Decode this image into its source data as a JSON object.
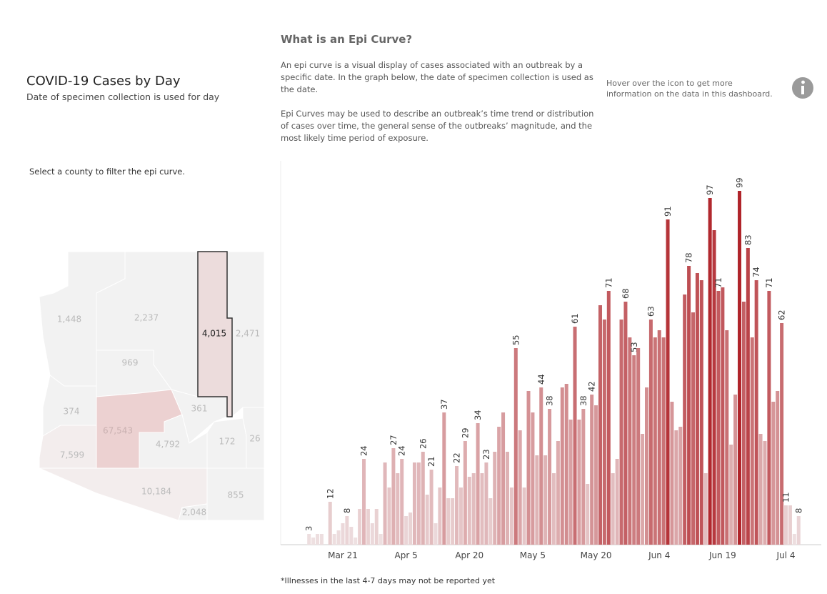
{
  "header": {
    "title": "COVID-19 Cases by Day",
    "subtitle": "Date of specimen collection is used for day"
  },
  "map": {
    "instruction": "Select a county to filter the epi curve.",
    "counties": [
      "1,448",
      "2,237",
      "969",
      "4,015",
      "2,471",
      "374",
      "67,543",
      "361",
      "7,599",
      "4,792",
      "172",
      "26",
      "10,184",
      "2,048",
      "855"
    ]
  },
  "about": {
    "heading": "What is an Epi Curve?",
    "paragraphs": [
      "An epi curve is a visual display of cases associated with an outbreak by a specific date. In the graph below, the date of specimen collection is used as the date.",
      "Epi Curves may be used to describe an outbreak’s time trend or distribution of cases over time, the general sense of the outbreaks’ magnitude, and the most likely time period of exposure."
    ]
  },
  "info": {
    "text": "Hover over the icon to get more information on the data in this dashboard."
  },
  "footnote": "*Illnesses in the last 4-7 days may not be reported yet",
  "chart_data": {
    "type": "bar",
    "categories": [
      null,
      null,
      null,
      null,
      null,
      null,
      null,
      null,
      "Mar 21",
      null,
      null,
      null,
      null,
      null,
      null,
      null,
      null,
      null,
      null,
      null,
      null,
      null,
      null,
      "Apr 5",
      null,
      null,
      null,
      null,
      null,
      null,
      null,
      null,
      null,
      null,
      null,
      null,
      null,
      null,
      "Apr 20",
      null,
      null,
      null,
      null,
      null,
      null,
      null,
      null,
      null,
      null,
      null,
      null,
      null,
      null,
      "May 5",
      null,
      null,
      null,
      null,
      null,
      null,
      null,
      null,
      null,
      null,
      null,
      null,
      null,
      null,
      "May 20",
      null,
      null,
      null,
      null,
      null,
      null,
      null,
      null,
      null,
      null,
      null,
      null,
      null,
      null,
      "Jun 4",
      null,
      null,
      null,
      null,
      null,
      null,
      null,
      null,
      null,
      null,
      null,
      null,
      null,
      null,
      "Jun 19",
      null,
      null,
      null,
      null,
      null,
      null,
      null,
      null,
      null,
      null,
      null,
      null,
      null,
      null,
      "Jul 4",
      null,
      null,
      null
    ],
    "values": [
      3,
      2,
      3,
      3,
      0,
      12,
      3,
      4,
      6,
      8,
      5,
      2,
      10,
      24,
      10,
      6,
      10,
      3,
      23,
      16,
      27,
      20,
      24,
      8,
      9,
      23,
      23,
      26,
      14,
      21,
      6,
      16,
      37,
      13,
      13,
      22,
      16,
      29,
      19,
      20,
      34,
      20,
      23,
      13,
      26,
      33,
      37,
      26,
      16,
      55,
      32,
      16,
      43,
      37,
      25,
      44,
      25,
      38,
      20,
      29,
      44,
      45,
      35,
      61,
      35,
      38,
      17,
      42,
      39,
      67,
      63,
      71,
      20,
      24,
      63,
      68,
      58,
      53,
      55,
      31,
      44,
      63,
      58,
      60,
      58,
      91,
      40,
      32,
      33,
      70,
      78,
      65,
      76,
      74,
      20,
      97,
      88,
      71,
      72,
      60,
      28,
      42,
      99,
      68,
      83,
      58,
      74,
      31,
      29,
      71,
      40,
      43,
      62,
      11,
      11,
      3,
      8
    ],
    "value_labels": [
      "3",
      null,
      null,
      null,
      null,
      "12",
      null,
      null,
      null,
      "8",
      null,
      null,
      null,
      "24",
      null,
      null,
      null,
      null,
      null,
      null,
      "27",
      null,
      "24",
      null,
      null,
      null,
      null,
      "26",
      null,
      "21",
      null,
      null,
      "37",
      null,
      null,
      "22",
      null,
      "29",
      null,
      null,
      "34",
      null,
      "23",
      null,
      null,
      null,
      null,
      null,
      null,
      "55",
      null,
      null,
      null,
      null,
      null,
      "44",
      null,
      "38",
      null,
      null,
      null,
      null,
      null,
      "61",
      null,
      "38",
      null,
      "42",
      null,
      null,
      null,
      "71",
      null,
      null,
      null,
      "68",
      null,
      "53",
      null,
      null,
      null,
      "63",
      null,
      null,
      null,
      "91",
      null,
      null,
      null,
      null,
      "78",
      null,
      null,
      null,
      null,
      "97",
      null,
      "71",
      null,
      null,
      null,
      null,
      "99",
      null,
      "83",
      null,
      "74",
      null,
      null,
      "71",
      null,
      null,
      "62",
      "11",
      null,
      null,
      "8"
    ],
    "color_scale": [
      "#efe4e5",
      "#b0242a"
    ],
    "ylim": [
      0,
      100
    ]
  }
}
